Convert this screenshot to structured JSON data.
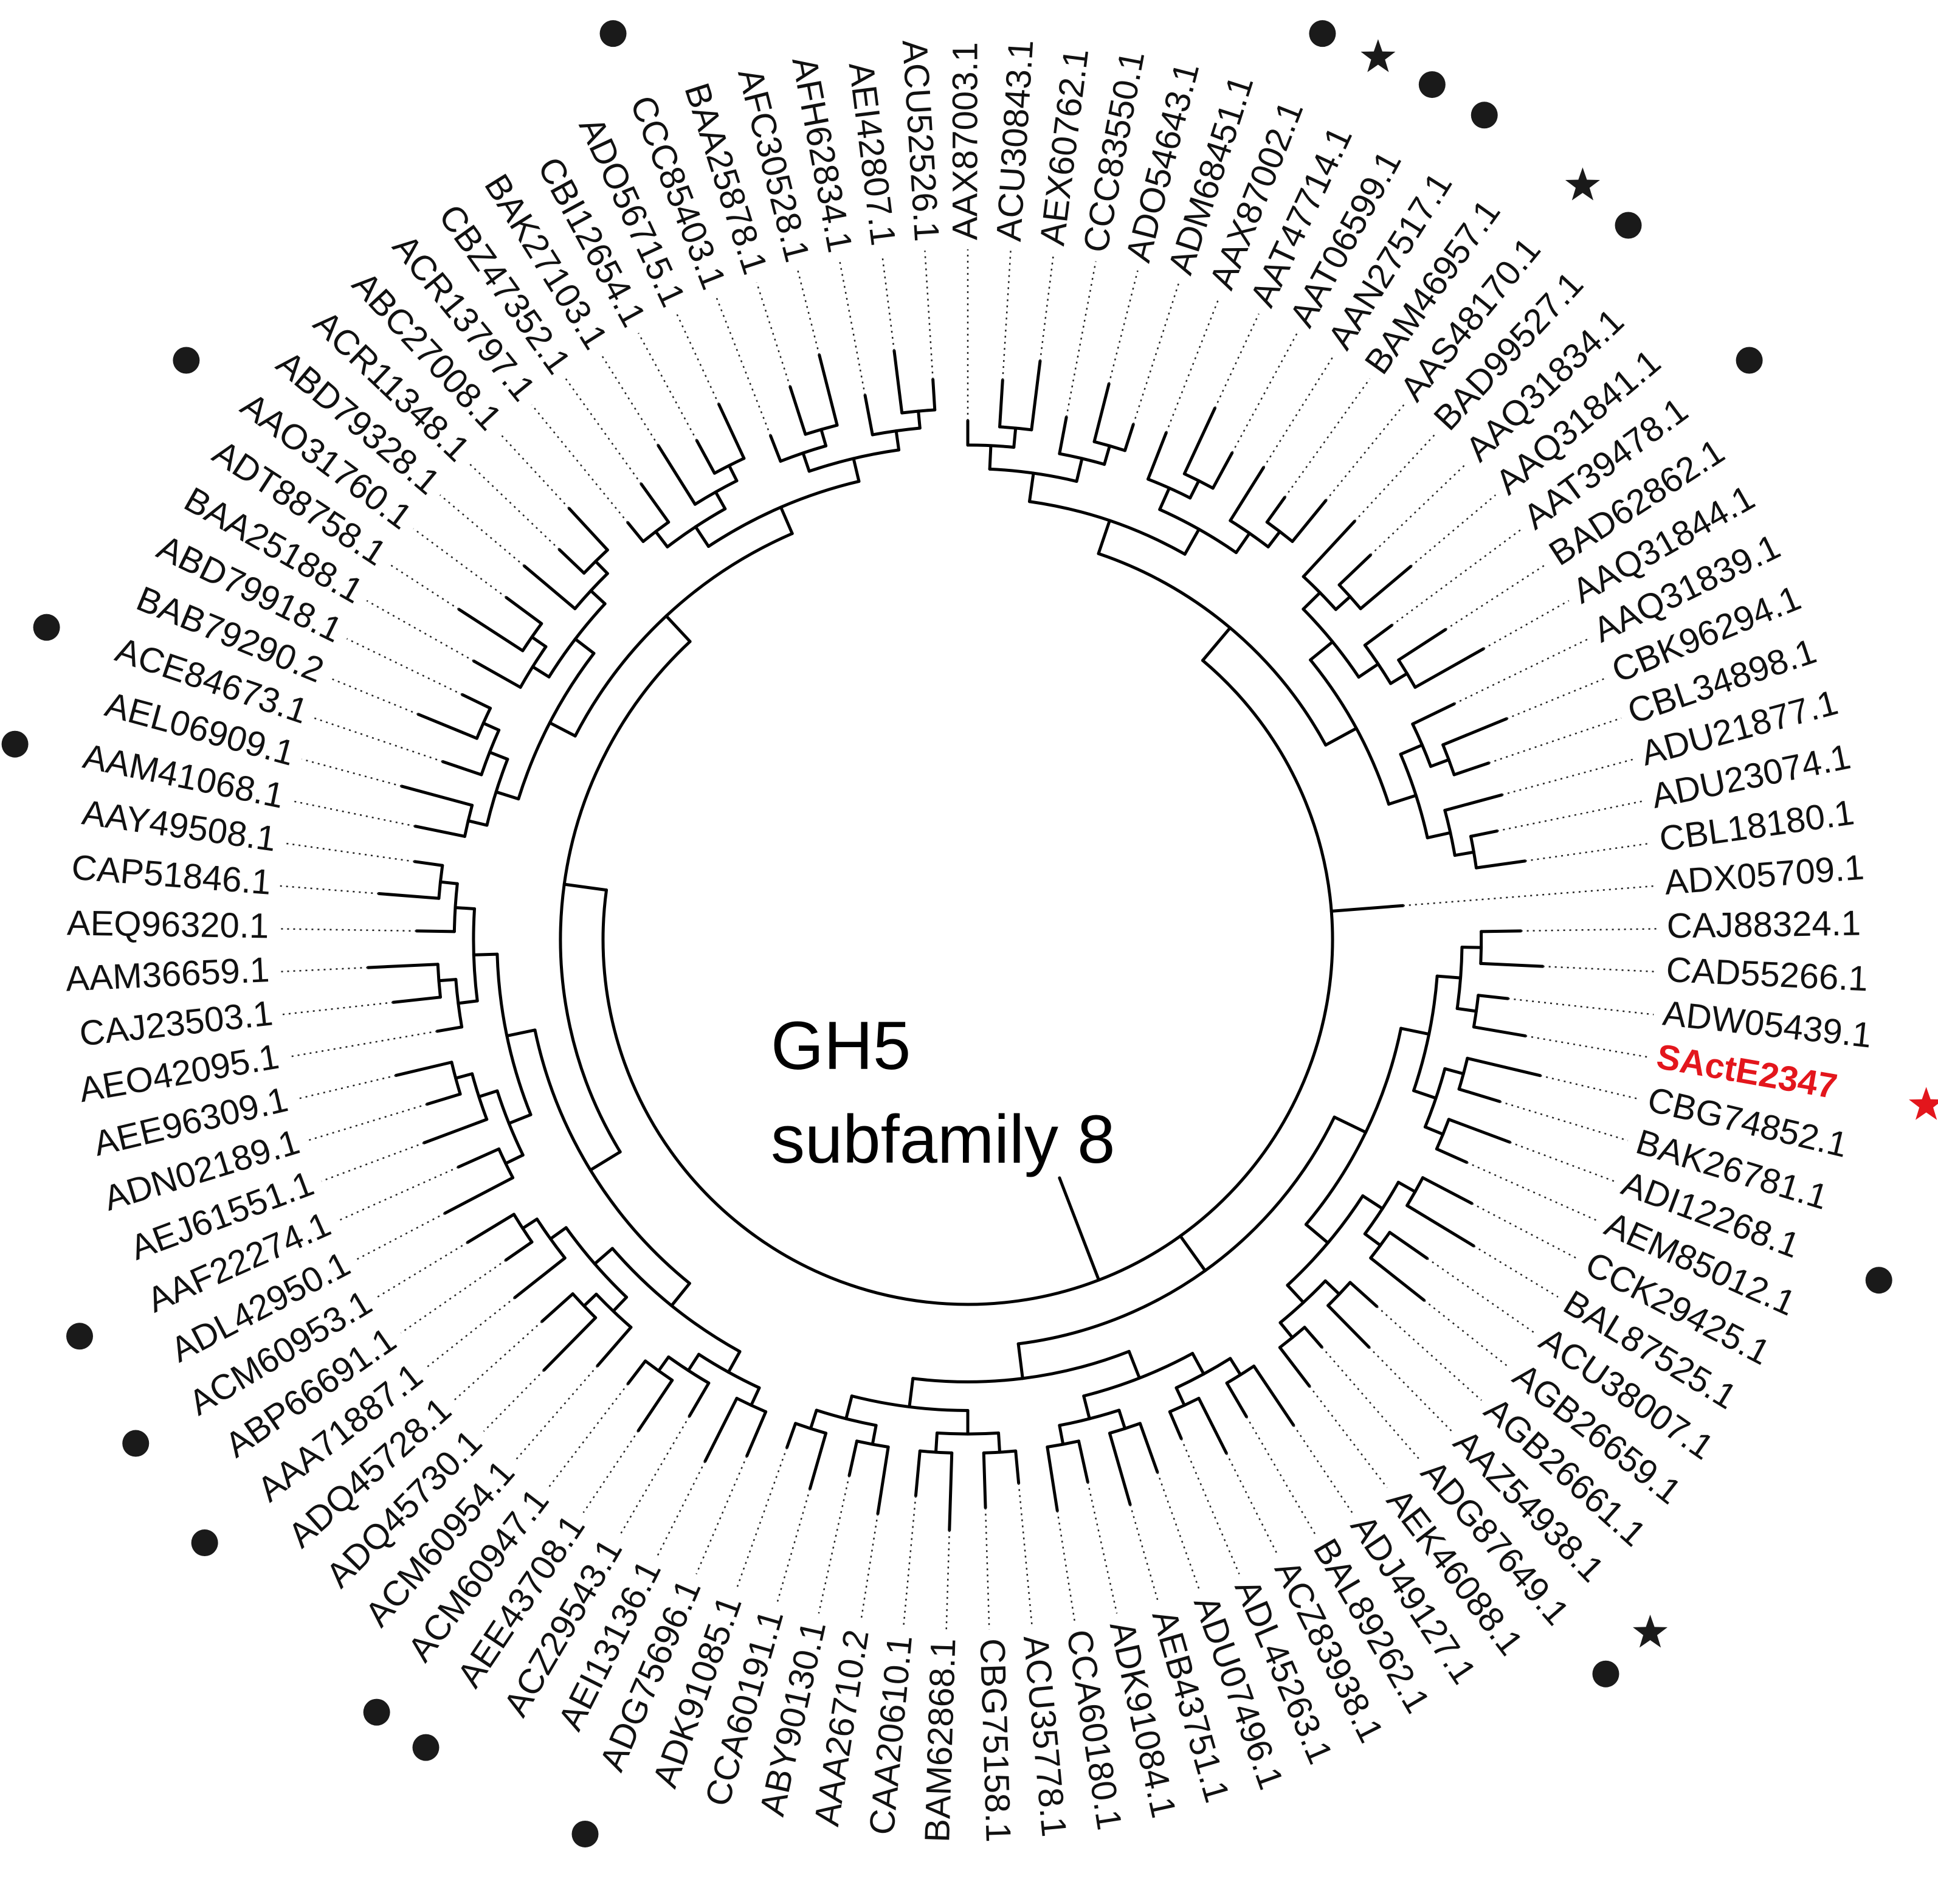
{
  "title_line1": "GH5",
  "title_line2": "subfamily 8",
  "colors": {
    "text": "#111111",
    "highlight": "#e3161c",
    "marker": "#1a1a1a"
  },
  "marker_types": {
    "dot": "filled-circle",
    "star": "filled-star"
  },
  "leaves": [
    {
      "label": "AAX87003.1",
      "marker": "dot"
    },
    {
      "label": "ACU30843.1"
    },
    {
      "label": "AEX60762.1"
    },
    {
      "label": "CCC83550.1"
    },
    {
      "label": "ADO54643.1"
    },
    {
      "label": "ADM68451.1"
    },
    {
      "label": "AAX87002.1",
      "marker": "dot"
    },
    {
      "label": "AAT47714.1",
      "marker": "star"
    },
    {
      "label": "AAT06599.1",
      "marker": "dot"
    },
    {
      "label": "AAN27517.1",
      "marker": "dot"
    },
    {
      "label": "BAM46957.1"
    },
    {
      "label": "AAS48170.1",
      "marker": "star"
    },
    {
      "label": "BAD99527.1",
      "marker": "dot"
    },
    {
      "label": "AAQ31834.1"
    },
    {
      "label": "AAQ31841.1"
    },
    {
      "label": "AAT39478.1",
      "marker": "dot"
    },
    {
      "label": "BAD62862.1"
    },
    {
      "label": "AAQ31844.1"
    },
    {
      "label": "AAQ31839.1"
    },
    {
      "label": "CBK96294.1"
    },
    {
      "label": "CBL34898.1"
    },
    {
      "label": "ADU21877.1"
    },
    {
      "label": "ADU23074.1"
    },
    {
      "label": "CBL18180.1"
    },
    {
      "label": "ADX05709.1"
    },
    {
      "label": "CAJ88324.1"
    },
    {
      "label": "CAD55266.1"
    },
    {
      "label": "ADW05439.1"
    },
    {
      "label": "SActE2347",
      "marker": "star",
      "highlight": true
    },
    {
      "label": "CBG74852.1"
    },
    {
      "label": "BAK26781.1"
    },
    {
      "label": "ADI12268.1",
      "marker": "dot"
    },
    {
      "label": "AEM85012.1"
    },
    {
      "label": "CCK29425.1"
    },
    {
      "label": "BAL87525.1"
    },
    {
      "label": "ACU38007.1"
    },
    {
      "label": "AGB26659.1"
    },
    {
      "label": "AGB26661.1"
    },
    {
      "label": "AAZ54938.1",
      "marker": "star"
    },
    {
      "label": "ADG87649.1",
      "marker": "dot"
    },
    {
      "label": "AEK46088.1"
    },
    {
      "label": "ADJ49127.1"
    },
    {
      "label": "BAL89262.1"
    },
    {
      "label": "ACZ83938.1"
    },
    {
      "label": "ADL45263.1"
    },
    {
      "label": "ADU07496.1"
    },
    {
      "label": "AEB43751.1"
    },
    {
      "label": "ADK91084.1"
    },
    {
      "label": "CCA60180.1"
    },
    {
      "label": "ACU35778.1"
    },
    {
      "label": "CBG75158.1"
    },
    {
      "label": "BAM62868.1"
    },
    {
      "label": "CAA20610.1"
    },
    {
      "label": "AAA26710.2"
    },
    {
      "label": "ABY90130.1"
    },
    {
      "label": "CCA60191.1"
    },
    {
      "label": "ADK91085.1"
    },
    {
      "label": "ADG75696.1",
      "marker": "dot"
    },
    {
      "label": "AEI13136.1"
    },
    {
      "label": "ACZ29543.1"
    },
    {
      "label": "AEE43708.1",
      "marker": "dot"
    },
    {
      "label": "ACM60947.1",
      "marker": "dot"
    },
    {
      "label": "ACM60954.1"
    },
    {
      "label": "ADQ45730.1"
    },
    {
      "label": "ADQ45728.1"
    },
    {
      "label": "AAA71887.1",
      "marker": "dot"
    },
    {
      "label": "ABP66691.1"
    },
    {
      "label": "ACM60953.1",
      "marker": "dot"
    },
    {
      "label": "ADL42950.1"
    },
    {
      "label": "AAF22274.1",
      "marker": "dot"
    },
    {
      "label": "AEJ61551.1"
    },
    {
      "label": "ADN02189.1"
    },
    {
      "label": "AEE96309.1"
    },
    {
      "label": "AEO42095.1"
    },
    {
      "label": "CAJ23503.1"
    },
    {
      "label": "AAM36659.1"
    },
    {
      "label": "AEQ96320.1"
    },
    {
      "label": "CAP51846.1"
    },
    {
      "label": "AAY49508.1"
    },
    {
      "label": "AAM41068.1",
      "marker": "dot"
    },
    {
      "label": "AEL06909.1"
    },
    {
      "label": "ACE84673.1",
      "marker": "dot"
    },
    {
      "label": "BAB79290.2"
    },
    {
      "label": "ABD79918.1"
    },
    {
      "label": "BAA25188.1"
    },
    {
      "label": "ADT88758.1"
    },
    {
      "label": "AAO31760.1",
      "marker": "dot"
    },
    {
      "label": "ABD79328.1"
    },
    {
      "label": "ACR11348.1"
    },
    {
      "label": "ABC27008.1"
    },
    {
      "label": "ACR13797.1"
    },
    {
      "label": "CBZ47352.1"
    },
    {
      "label": "BAK27103.1"
    },
    {
      "label": "CBI12654.1"
    },
    {
      "label": "ADO56715.1"
    },
    {
      "label": "CCC85403.1",
      "marker": "dot"
    },
    {
      "label": "BAA25878.1"
    },
    {
      "label": "AFC30528.1"
    },
    {
      "label": "AFH62834.1"
    },
    {
      "label": "AEI42807.1"
    },
    {
      "label": "ACU52526.1"
    }
  ]
}
